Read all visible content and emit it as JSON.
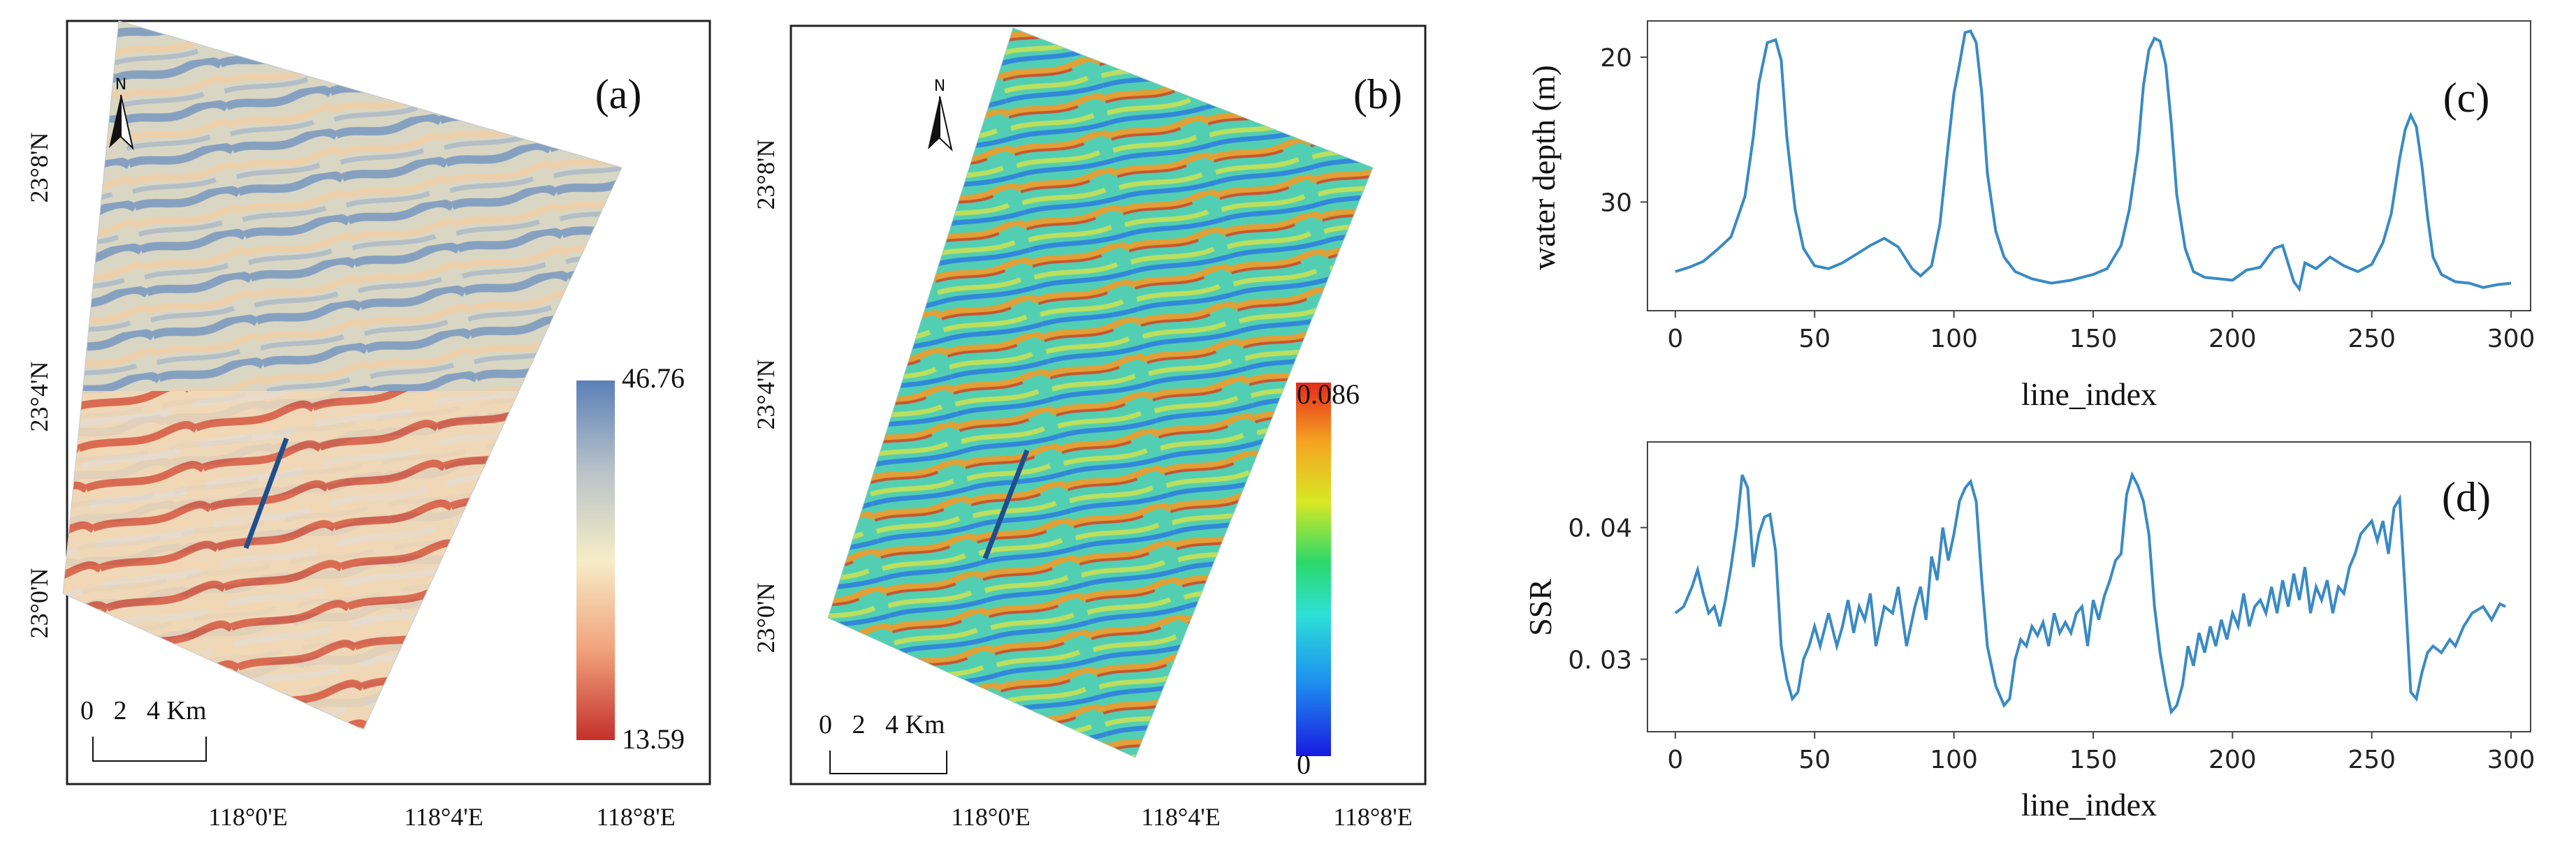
{
  "colors": {
    "depth_low": "#c4302b",
    "depth_mid": "#f6edc7",
    "depth_high": "#5b80b8",
    "ssr_low": "#1a1ae0",
    "ssr_mid": "#2cd96a",
    "ssr_high": "#e52a1a",
    "profile_line": "#1f4e8c",
    "series": "#3a8ac4"
  },
  "panels": {
    "a": {
      "label": "(a)",
      "lat_ticks": [
        "23°8'N",
        "23°4'N",
        "23°0'N"
      ],
      "lon_ticks": [
        "118°0'E",
        "118°4'E",
        "118°8'E"
      ],
      "colorbar_max": "46.76",
      "colorbar_min": "13.59",
      "scale_label": "0   2   4 Km",
      "north_label": "N"
    },
    "b": {
      "label": "(b)",
      "lat_ticks": [
        "23°8'N",
        "23°4'N",
        "23°0'N"
      ],
      "lon_ticks": [
        "118°0'E",
        "118°4'E",
        "118°8'E"
      ],
      "colorbar_max": "0.086",
      "colorbar_min": "0",
      "scale_label": "0   2   4 Km",
      "north_label": "N"
    }
  },
  "chart_data": [
    {
      "type": "line",
      "panel_label": "(c)",
      "xlabel": "line_index",
      "ylabel": "water depth (m)",
      "xlim": [
        -10,
        307
      ],
      "ylim": [
        37.5,
        17.5
      ],
      "y_inverted": true,
      "xticks": [
        0,
        50,
        100,
        150,
        200,
        250,
        300
      ],
      "yticks": [
        20,
        30
      ],
      "series": [
        {
          "name": "water depth",
          "x": [
            0,
            5,
            10,
            15,
            20,
            25,
            28,
            30,
            33,
            36,
            38,
            40,
            43,
            46,
            50,
            55,
            60,
            65,
            70,
            75,
            80,
            85,
            88,
            92,
            95,
            98,
            100,
            102,
            104,
            106,
            108,
            110,
            112,
            115,
            118,
            122,
            128,
            135,
            142,
            150,
            155,
            160,
            163,
            166,
            168,
            170,
            172,
            174,
            176,
            178,
            180,
            183,
            186,
            190,
            195,
            200,
            205,
            210,
            215,
            218,
            222,
            224,
            226,
            230,
            235,
            240,
            245,
            250,
            254,
            257,
            260,
            262,
            264,
            266,
            268,
            270,
            272,
            275,
            280,
            285,
            290,
            295,
            300
          ],
          "values": [
            34.8,
            34.5,
            34.1,
            33.3,
            32.4,
            29.6,
            25.5,
            21.8,
            19.0,
            18.8,
            20.2,
            25.5,
            30.5,
            33.2,
            34.4,
            34.6,
            34.2,
            33.6,
            33.0,
            32.5,
            33.1,
            34.6,
            35.1,
            34.4,
            31.5,
            26.0,
            22.5,
            20.5,
            18.3,
            18.2,
            19.0,
            22.5,
            28.0,
            32.0,
            33.8,
            34.8,
            35.3,
            35.6,
            35.4,
            35.0,
            34.6,
            33.0,
            30.5,
            26.5,
            22.0,
            19.5,
            18.7,
            18.9,
            20.5,
            24.5,
            29.5,
            33.2,
            34.8,
            35.2,
            35.3,
            35.4,
            34.7,
            34.5,
            33.2,
            33.0,
            35.5,
            36.0,
            34.2,
            34.6,
            33.8,
            34.4,
            34.8,
            34.3,
            32.8,
            30.8,
            27.0,
            25.0,
            24.0,
            24.8,
            27.5,
            31.0,
            33.8,
            35.0,
            35.5,
            35.6,
            35.9,
            35.7,
            35.6
          ]
        }
      ]
    },
    {
      "type": "line",
      "panel_label": "(d)",
      "xlabel": "line_index",
      "ylabel": "SSR",
      "xlim": [
        -10,
        307
      ],
      "ylim": [
        0.0245,
        0.0465
      ],
      "xticks": [
        0,
        50,
        100,
        150,
        200,
        250,
        300
      ],
      "yticks": [
        0.03,
        0.04
      ],
      "ytick_labels": [
        "0. 03",
        "0. 04"
      ],
      "series": [
        {
          "name": "SSR",
          "x": [
            0,
            3,
            6,
            8,
            10,
            12,
            14,
            16,
            18,
            20,
            22,
            24,
            26,
            28,
            30,
            32,
            34,
            36,
            38,
            40,
            42,
            44,
            46,
            48,
            50,
            52,
            55,
            58,
            60,
            62,
            64,
            66,
            68,
            70,
            72,
            75,
            78,
            80,
            83,
            86,
            88,
            90,
            92,
            94,
            96,
            98,
            100,
            102,
            104,
            106,
            108,
            110,
            112,
            115,
            118,
            120,
            122,
            124,
            126,
            128,
            130,
            132,
            134,
            136,
            138,
            140,
            142,
            144,
            146,
            148,
            150,
            152,
            154,
            156,
            158,
            160,
            162,
            164,
            166,
            168,
            170,
            172,
            174,
            176,
            178,
            180,
            182,
            184,
            186,
            188,
            190,
            192,
            194,
            196,
            198,
            200,
            202,
            204,
            206,
            208,
            210,
            212,
            214,
            216,
            218,
            220,
            222,
            224,
            226,
            228,
            230,
            232,
            234,
            236,
            238,
            240,
            242,
            244,
            246,
            248,
            250,
            252,
            254,
            256,
            258,
            260,
            262,
            264,
            266,
            268,
            270,
            272,
            275,
            278,
            280,
            283,
            286,
            290,
            293,
            296,
            298
          ],
          "values": [
            0.0335,
            0.034,
            0.0355,
            0.0368,
            0.035,
            0.0335,
            0.034,
            0.0325,
            0.0345,
            0.037,
            0.04,
            0.044,
            0.043,
            0.037,
            0.0395,
            0.0408,
            0.041,
            0.0382,
            0.031,
            0.0285,
            0.027,
            0.0275,
            0.03,
            0.031,
            0.0325,
            0.031,
            0.0335,
            0.031,
            0.0325,
            0.0345,
            0.032,
            0.034,
            0.033,
            0.035,
            0.031,
            0.034,
            0.0335,
            0.0355,
            0.031,
            0.034,
            0.0355,
            0.033,
            0.0378,
            0.036,
            0.04,
            0.0375,
            0.0395,
            0.042,
            0.043,
            0.0435,
            0.042,
            0.036,
            0.031,
            0.028,
            0.0265,
            0.027,
            0.03,
            0.0315,
            0.031,
            0.0325,
            0.0318,
            0.0328,
            0.031,
            0.0335,
            0.032,
            0.0328,
            0.032,
            0.0335,
            0.034,
            0.031,
            0.0345,
            0.033,
            0.0348,
            0.036,
            0.0375,
            0.038,
            0.0425,
            0.044,
            0.0432,
            0.042,
            0.0395,
            0.034,
            0.0305,
            0.028,
            0.026,
            0.0265,
            0.028,
            0.031,
            0.0295,
            0.032,
            0.0305,
            0.0325,
            0.031,
            0.033,
            0.0315,
            0.0335,
            0.0325,
            0.035,
            0.0325,
            0.034,
            0.0345,
            0.0335,
            0.0355,
            0.0335,
            0.036,
            0.034,
            0.0365,
            0.0345,
            0.037,
            0.0335,
            0.0355,
            0.0345,
            0.036,
            0.0335,
            0.0355,
            0.035,
            0.037,
            0.038,
            0.0395,
            0.04,
            0.0405,
            0.039,
            0.0405,
            0.038,
            0.0415,
            0.0422,
            0.035,
            0.0275,
            0.027,
            0.029,
            0.0305,
            0.031,
            0.0305,
            0.0315,
            0.031,
            0.0325,
            0.0335,
            0.034,
            0.033,
            0.0342,
            0.034
          ]
        }
      ]
    }
  ]
}
